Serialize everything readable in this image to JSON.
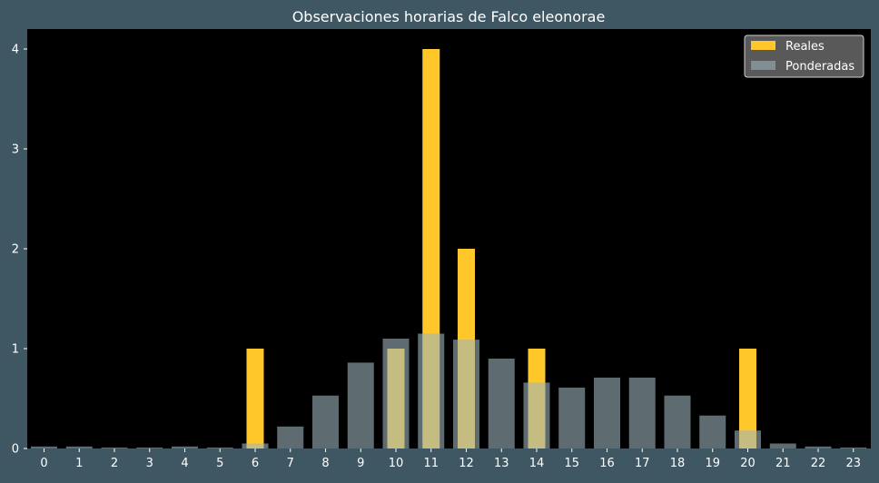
{
  "chart_data": {
    "type": "bar",
    "title": "Observaciones horarias de Falco eleonorae",
    "xlabel": "",
    "ylabel": "",
    "categories": [
      "0",
      "1",
      "2",
      "3",
      "4",
      "5",
      "6",
      "7",
      "8",
      "9",
      "10",
      "11",
      "12",
      "13",
      "14",
      "15",
      "16",
      "17",
      "18",
      "19",
      "20",
      "21",
      "22",
      "23"
    ],
    "ylim": [
      0,
      4.2
    ],
    "yticks": [
      0,
      1,
      2,
      3,
      4
    ],
    "series": [
      {
        "name": "Reales",
        "color": "#ffc72a",
        "values": [
          0,
          0,
          0,
          0,
          0,
          0,
          1,
          0,
          0,
          0,
          1,
          4,
          2,
          0,
          1,
          0,
          0,
          0,
          0,
          0,
          1,
          0,
          0,
          0
        ]
      },
      {
        "name": "Ponderadas",
        "color": "#9db4bc",
        "values": [
          0.02,
          0.02,
          0.01,
          0.01,
          0.02,
          0.01,
          0.05,
          0.22,
          0.53,
          0.86,
          1.1,
          1.15,
          1.09,
          0.9,
          0.66,
          0.61,
          0.71,
          0.71,
          0.53,
          0.33,
          0.18,
          0.05,
          0.02,
          0.01
        ]
      }
    ],
    "legend": {
      "position": "top-right",
      "entries": [
        "Reales",
        "Ponderadas"
      ]
    },
    "colors": {
      "figure_background": "#3f5663",
      "plot_background": "#000000",
      "text": "#ffffff"
    }
  }
}
